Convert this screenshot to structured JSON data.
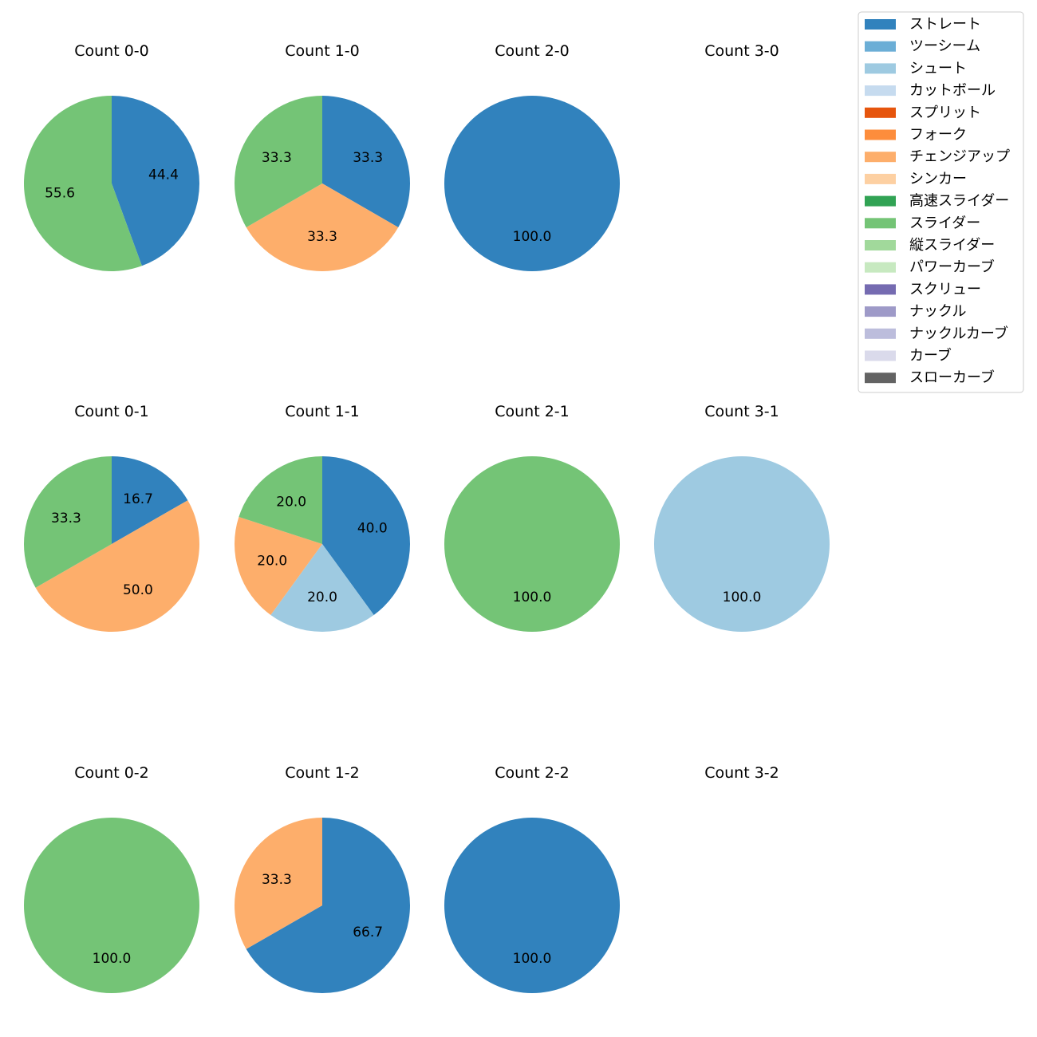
{
  "chart_data": {
    "type": "pie",
    "title": "",
    "legend": {
      "placement": "top-right",
      "entries": [
        {
          "name": "ストレート",
          "color": "#3182bd"
        },
        {
          "name": "ツーシーム",
          "color": "#6baed6"
        },
        {
          "name": "シュート",
          "color": "#9ecae1"
        },
        {
          "name": "カットボール",
          "color": "#c6dbef"
        },
        {
          "name": "スプリット",
          "color": "#e6550d"
        },
        {
          "name": "フォーク",
          "color": "#fd8d3c"
        },
        {
          "name": "チェンジアップ",
          "color": "#fdae6b"
        },
        {
          "name": "シンカー",
          "color": "#fdd0a2"
        },
        {
          "name": "高速スライダー",
          "color": "#31a354"
        },
        {
          "name": "スライダー",
          "color": "#74c476"
        },
        {
          "name": "縦スライダー",
          "color": "#a1d99b"
        },
        {
          "name": "パワーカーブ",
          "color": "#c7e9c0"
        },
        {
          "name": "スクリュー",
          "color": "#756bb1"
        },
        {
          "name": "ナックル",
          "color": "#9e9ac8"
        },
        {
          "name": "ナックルカーブ",
          "color": "#bcbddc"
        },
        {
          "name": "カーブ",
          "color": "#dadaeb"
        },
        {
          "name": "スローカーブ",
          "color": "#636363"
        }
      ]
    },
    "charts": [
      {
        "title": "Count 0-0",
        "slices": [
          {
            "category": "ストレート",
            "value": 44.4,
            "label": "44.4"
          },
          {
            "category": "スライダー",
            "value": 55.6,
            "label": "55.6"
          }
        ]
      },
      {
        "title": "Count 1-0",
        "slices": [
          {
            "category": "ストレート",
            "value": 33.3,
            "label": "33.3"
          },
          {
            "category": "チェンジアップ",
            "value": 33.3,
            "label": "33.3"
          },
          {
            "category": "スライダー",
            "value": 33.3,
            "label": "33.3"
          }
        ]
      },
      {
        "title": "Count 2-0",
        "slices": [
          {
            "category": "ストレート",
            "value": 100.0,
            "label": "100.0"
          }
        ]
      },
      {
        "title": "Count 3-0",
        "slices": []
      },
      {
        "title": "Count 0-1",
        "slices": [
          {
            "category": "ストレート",
            "value": 16.7,
            "label": "16.7"
          },
          {
            "category": "チェンジアップ",
            "value": 50.0,
            "label": "50.0"
          },
          {
            "category": "スライダー",
            "value": 33.3,
            "label": "33.3"
          }
        ]
      },
      {
        "title": "Count 1-1",
        "slices": [
          {
            "category": "ストレート",
            "value": 40.0,
            "label": "40.0"
          },
          {
            "category": "シュート",
            "value": 20.0,
            "label": "20.0"
          },
          {
            "category": "チェンジアップ",
            "value": 20.0,
            "label": "20.0"
          },
          {
            "category": "スライダー",
            "value": 20.0,
            "label": "20.0"
          }
        ]
      },
      {
        "title": "Count 2-1",
        "slices": [
          {
            "category": "スライダー",
            "value": 100.0,
            "label": "100.0"
          }
        ]
      },
      {
        "title": "Count 3-1",
        "slices": [
          {
            "category": "シュート",
            "value": 100.0,
            "label": "100.0"
          }
        ]
      },
      {
        "title": "Count 0-2",
        "slices": [
          {
            "category": "スライダー",
            "value": 100.0,
            "label": "100.0"
          }
        ]
      },
      {
        "title": "Count 1-2",
        "slices": [
          {
            "category": "ストレート",
            "value": 66.7,
            "label": "66.7"
          },
          {
            "category": "チェンジアップ",
            "value": 33.3,
            "label": "33.3"
          }
        ]
      },
      {
        "title": "Count 2-2",
        "slices": [
          {
            "category": "ストレート",
            "value": 100.0,
            "label": "100.0"
          }
        ]
      },
      {
        "title": "Count 3-2",
        "slices": []
      }
    ]
  }
}
